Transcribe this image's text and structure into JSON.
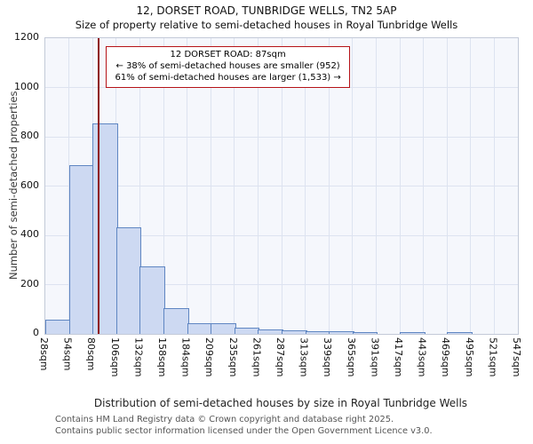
{
  "chart_data": {
    "type": "bar",
    "title": "12, DORSET ROAD, TUNBRIDGE WELLS, TN2 5AP",
    "subtitle": "Size of property relative to semi-detached houses in Royal Tunbridge Wells",
    "xlabel": "Distribution of semi-detached houses by size in Royal Tunbridge Wells",
    "ylabel": "Number of semi-detached properties",
    "ylim": [
      0,
      1200
    ],
    "yticks": [
      0,
      200,
      400,
      600,
      800,
      1000,
      1200
    ],
    "bin_edges": [
      28,
      54,
      80,
      106,
      132,
      158,
      184,
      209,
      235,
      261,
      287,
      313,
      339,
      365,
      391,
      417,
      443,
      469,
      495,
      521,
      547
    ],
    "tick_labels": [
      "28sqm",
      "54sqm",
      "80sqm",
      "106sqm",
      "132sqm",
      "158sqm",
      "184sqm",
      "209sqm",
      "235sqm",
      "261sqm",
      "287sqm",
      "313sqm",
      "339sqm",
      "365sqm",
      "391sqm",
      "417sqm",
      "443sqm",
      "469sqm",
      "495sqm",
      "521sqm",
      "547sqm"
    ],
    "values": [
      55,
      680,
      850,
      430,
      270,
      100,
      40,
      38,
      22,
      15,
      10,
      6,
      9,
      4,
      0,
      4,
      0,
      3,
      0,
      0
    ],
    "marker": {
      "value": 87
    },
    "annotation": {
      "line1": "12 DORSET ROAD: 87sqm",
      "line2": "← 38% of semi-detached houses are smaller (952)",
      "line3": "61% of semi-detached houses are larger (1,533) →"
    },
    "grid": true,
    "legend": "none",
    "colors": {
      "bar_fill": "#cdd9f2",
      "bar_border": "#5f86c2",
      "marker_line": "#8f1215",
      "annotation_border": "#b61318",
      "gridline": "#dde3f0",
      "plot_background": "#f5f7fc"
    }
  },
  "footer": {
    "line1": "Contains HM Land Registry data © Crown copyright and database right 2025.",
    "line2": "Contains public sector information licensed under the Open Government Licence v3.0."
  }
}
